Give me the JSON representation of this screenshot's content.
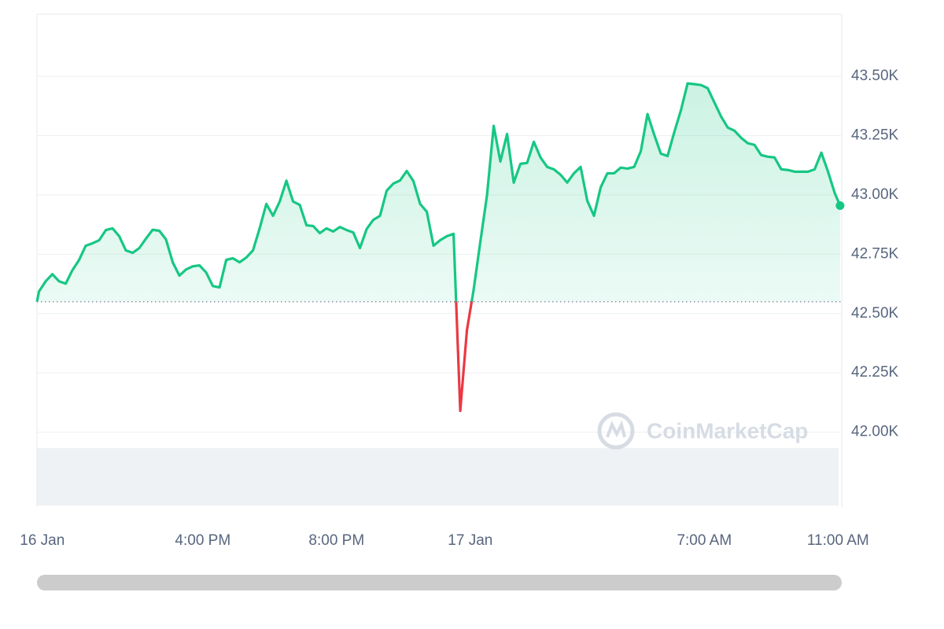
{
  "chart_data": {
    "type": "line",
    "watermark": "CoinMarketCap",
    "x": [
      -12.96,
      -12.9,
      -12.7,
      -12.5,
      -12.3,
      -12.1,
      -11.9,
      -11.7,
      -11.5,
      -11.3,
      -11.1,
      -10.9,
      -10.7,
      -10.5,
      -10.3,
      -10.1,
      -9.9,
      -9.7,
      -9.5,
      -9.3,
      -9.1,
      -8.9,
      -8.7,
      -8.5,
      -8.3,
      -8.1,
      -7.9,
      -7.7,
      -7.5,
      -7.3,
      -7.1,
      -6.9,
      -6.7,
      -6.5,
      -6.3,
      -6.1,
      -5.9,
      -5.7,
      -5.5,
      -5.3,
      -5.1,
      -4.9,
      -4.7,
      -4.5,
      -4.3,
      -4.1,
      -3.9,
      -3.7,
      -3.5,
      -3.3,
      -3.1,
      -2.9,
      -2.7,
      -2.5,
      -2.3,
      -2.1,
      -1.9,
      -1.7,
      -1.5,
      -1.3,
      -1.1,
      -0.9,
      -0.7,
      -0.5,
      -0.3,
      -0.1,
      0.1,
      0.3,
      0.5,
      0.7,
      0.9,
      1.1,
      1.3,
      1.5,
      1.7,
      1.9,
      2.1,
      2.3,
      2.5,
      2.7,
      2.9,
      3.1,
      3.3,
      3.5,
      3.7,
      3.9,
      4.1,
      4.3,
      4.5,
      4.7,
      4.9,
      5.1,
      5.3,
      5.5,
      5.7,
      5.9,
      6.1,
      6.3,
      6.5,
      6.7,
      6.9,
      7.1,
      7.3,
      7.5,
      7.7,
      7.9,
      8.1,
      8.3,
      8.5,
      8.7,
      8.9,
      9.1,
      9.3,
      9.5,
      9.7,
      9.9,
      10.1,
      10.3,
      10.5,
      10.7,
      10.9,
      11.06
    ],
    "values": [
      42550,
      42593,
      42636,
      42666,
      42636,
      42626,
      42683,
      42726,
      42786,
      42796,
      42809,
      42852,
      42859,
      42826,
      42766,
      42756,
      42776,
      42816,
      42853,
      42849,
      42812,
      42716,
      42660,
      42686,
      42699,
      42703,
      42673,
      42616,
      42610,
      42726,
      42733,
      42716,
      42736,
      42766,
      42859,
      42962,
      42912,
      42972,
      43060,
      42972,
      42958,
      42872,
      42869,
      42839,
      42859,
      42846,
      42865,
      42852,
      42842,
      42776,
      42856,
      42895,
      42912,
      43018,
      43048,
      43061,
      43101,
      43058,
      42962,
      42929,
      42786,
      42809,
      42826,
      42836,
      42090,
      42430,
      42600,
      42802,
      42998,
      43291,
      43141,
      43257,
      43052,
      43131,
      43135,
      43224,
      43158,
      43118,
      43108,
      43085,
      43052,
      43091,
      43118,
      42975,
      42912,
      43032,
      43091,
      43091,
      43115,
      43111,
      43118,
      43184,
      43341,
      43254,
      43174,
      43164,
      43264,
      43357,
      43470,
      43467,
      43463,
      43450,
      43390,
      43331,
      43284,
      43271,
      43241,
      43218,
      43211,
      43168,
      43161,
      43158,
      43108,
      43105,
      43098,
      43098,
      43098,
      43108,
      43178,
      43098,
      43008,
      42955
    ],
    "baseline": 42550,
    "color": "#16c784",
    "down_color": "#ea3943",
    "xlim": [
      -12.96,
      11.11
    ],
    "xticks": [
      {
        "value": -12.8,
        "label": "16 Jan"
      },
      {
        "value": -8,
        "label": "4:00 PM"
      },
      {
        "value": -4,
        "label": "8:00 PM"
      },
      {
        "value": 0,
        "label": "17 Jan"
      },
      {
        "value": 7,
        "label": "7:00 AM"
      },
      {
        "value": 11,
        "label": "11:00 AM"
      }
    ],
    "ylim": [
      41684,
      43762
    ],
    "yticks": [
      {
        "value": 42000,
        "label": "42.00K"
      },
      {
        "value": 42250,
        "label": "42.25K"
      },
      {
        "value": 42500,
        "label": "42.50K"
      },
      {
        "value": 42750,
        "label": "42.75K"
      },
      {
        "value": 43000,
        "label": "43.00K"
      },
      {
        "value": 43250,
        "label": "43.25K"
      },
      {
        "value": 43500,
        "label": "43.50K"
      }
    ],
    "grid": true
  }
}
